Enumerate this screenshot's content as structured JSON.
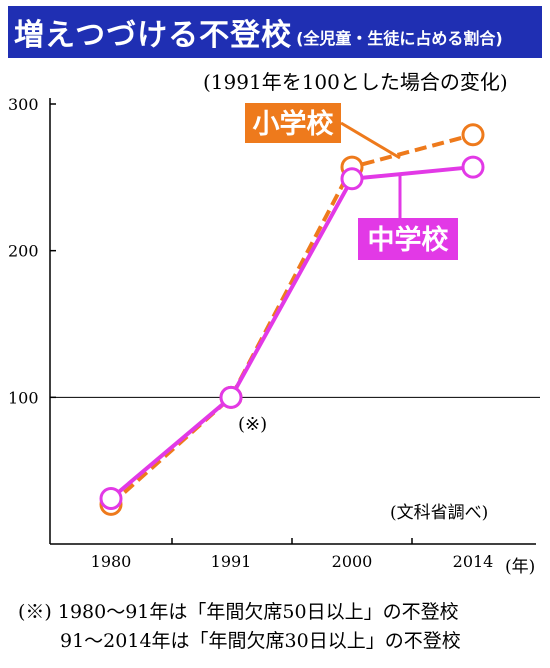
{
  "title": {
    "main": "増えつづける不登校",
    "sub": "(全児童・生徒に占める割合)"
  },
  "subtitle": "(1991年を100とした場合の変化)",
  "source": "(文科省調べ)",
  "footnotes": [
    "(※) 1980〜91年は「年間欠席50日以上」の不登校",
    "91〜2014年は「年間欠席30日以上」の不登校"
  ],
  "colors": {
    "title_bg": "#1f2fb3",
    "elementary": "#ee7a1c",
    "junior_high": "#e239e6"
  },
  "chart_data": {
    "type": "line",
    "x": [
      "1980",
      "1991",
      "2000",
      "2014"
    ],
    "x_unit": "(年)",
    "ylim": [
      0,
      300
    ],
    "yticks": [
      100,
      200,
      300
    ],
    "grid": "horizontal line at 100",
    "note_marker": "(※)",
    "series": [
      {
        "name": "小学校",
        "values": [
          27,
          100,
          257,
          279
        ],
        "style": "dashed",
        "color": "#ee7a1c"
      },
      {
        "name": "中学校",
        "values": [
          31,
          100,
          249,
          257
        ],
        "style": "solid",
        "color": "#e239e6"
      }
    ]
  }
}
